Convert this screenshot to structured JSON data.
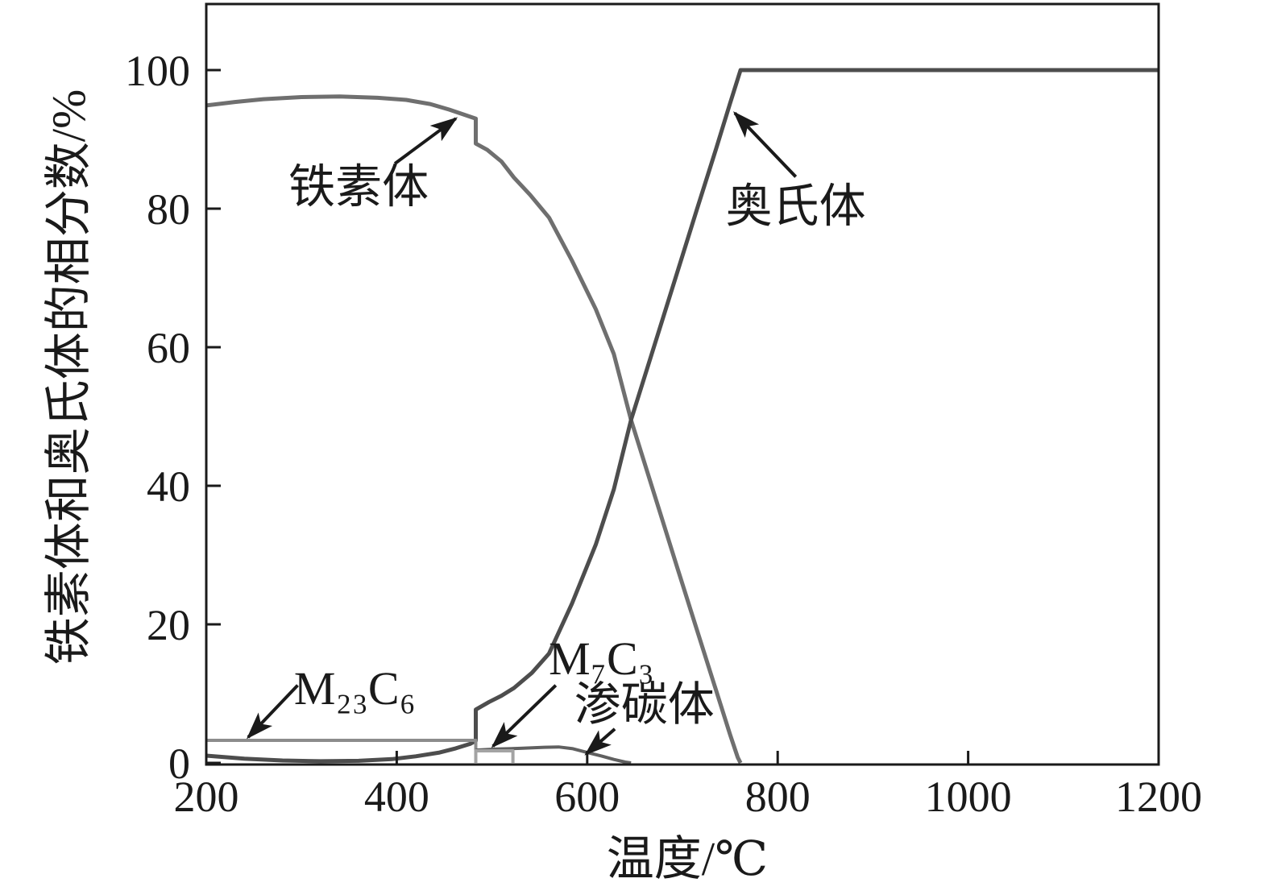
{
  "chart_data": {
    "type": "line",
    "title": "",
    "xlabel": "温度/℃",
    "ylabel": "铁素体和奥氏体的相分数/%",
    "xlim": [
      200,
      1200
    ],
    "ylim": [
      0,
      110
    ],
    "x_ticks": [
      200,
      400,
      600,
      800,
      1000,
      1200
    ],
    "y_ticks": [
      0,
      20,
      40,
      60,
      80,
      100
    ],
    "grid": false,
    "legend_position": "none (curves identified by arrow annotations)",
    "axis_color": "#1a1a1a",
    "series": [
      {
        "id": "ferrite",
        "name": "铁素体",
        "color": "#6f6f6f",
        "width": 5,
        "points": [
          [
            200,
            94.9
          ],
          [
            230,
            95.4
          ],
          [
            260,
            95.8
          ],
          [
            300,
            96.1
          ],
          [
            340,
            96.2
          ],
          [
            380,
            96.0
          ],
          [
            410,
            95.7
          ],
          [
            435,
            95.1
          ],
          [
            455,
            94.3
          ],
          [
            470,
            93.6
          ],
          [
            483,
            93.0
          ],
          [
            483,
            89.4
          ],
          [
            495,
            88.5
          ],
          [
            510,
            86.8
          ],
          [
            523,
            84.5
          ],
          [
            540,
            82.0
          ],
          [
            560,
            78.7
          ],
          [
            584,
            72.5
          ],
          [
            609,
            65.5
          ],
          [
            628,
            59.0
          ],
          [
            646,
            49.5
          ],
          [
            670,
            39.0
          ],
          [
            695,
            28.0
          ],
          [
            715,
            19.3
          ],
          [
            735,
            10.6
          ],
          [
            750,
            4.1
          ],
          [
            758,
            0.8
          ],
          [
            761,
            0
          ]
        ]
      },
      {
        "id": "austenite",
        "name": "奥氏体",
        "color": "#4d4d4d",
        "width": 5,
        "points": [
          [
            200,
            1.05
          ],
          [
            240,
            0.6
          ],
          [
            280,
            0.35
          ],
          [
            320,
            0.25
          ],
          [
            360,
            0.3
          ],
          [
            395,
            0.55
          ],
          [
            420,
            0.95
          ],
          [
            445,
            1.5
          ],
          [
            462,
            2.1
          ],
          [
            477,
            2.75
          ],
          [
            483,
            3.2
          ],
          [
            483,
            7.7
          ],
          [
            497,
            8.8
          ],
          [
            510,
            9.7
          ],
          [
            523,
            10.8
          ],
          [
            542,
            13.0
          ],
          [
            560,
            15.8
          ],
          [
            584,
            23.0
          ],
          [
            609,
            31.5
          ],
          [
            628,
            39.5
          ],
          [
            646,
            49.5
          ],
          [
            670,
            60.0
          ],
          [
            695,
            71.0
          ],
          [
            715,
            79.8
          ],
          [
            735,
            88.5
          ],
          [
            750,
            95.2
          ],
          [
            761,
            100
          ],
          [
            1200,
            100
          ]
        ]
      },
      {
        "id": "m23c6",
        "name": "M₂₃C₆",
        "color": "#8c8c8c",
        "width": 4,
        "points": [
          [
            200,
            3.25
          ],
          [
            350,
            3.25
          ],
          [
            483,
            3.25
          ],
          [
            483,
            0
          ]
        ]
      },
      {
        "id": "cementite",
        "name": "渗碳体",
        "color": "#606060",
        "width": 4,
        "points": [
          [
            483,
            1.85
          ],
          [
            505,
            2.0
          ],
          [
            530,
            2.1
          ],
          [
            555,
            2.25
          ],
          [
            570,
            2.3
          ],
          [
            585,
            2.05
          ],
          [
            600,
            1.5
          ],
          [
            615,
            1.0
          ],
          [
            628,
            0.5
          ],
          [
            640,
            0.12
          ],
          [
            646,
            0
          ]
        ]
      },
      {
        "id": "m7c3",
        "name": "M₇C₃",
        "color": "#a3a3a3",
        "width": 4,
        "points": [
          [
            483,
            0
          ],
          [
            483,
            1.75
          ],
          [
            522,
            1.75
          ],
          [
            522,
            0
          ]
        ]
      }
    ],
    "annotations": [
      {
        "id": "ferrite-label",
        "text": "铁素体",
        "t": 360,
        "f": 83.2,
        "arrow_from": [
          398,
          86.5
        ],
        "arrow_to": [
          462,
          93.0
        ]
      },
      {
        "id": "austenite-label",
        "text": "奥氏体",
        "t": 819,
        "f": 80.4,
        "arrow_from": [
          819,
          84.6
        ],
        "arrow_to": [
          755,
          93.8
        ]
      },
      {
        "id": "m23c6-label",
        "text": "M₂₃C₆",
        "t": 356,
        "f": 10.8,
        "arrow_from": [
          296,
          11.2
        ],
        "arrow_to": [
          244,
          3.7
        ]
      },
      {
        "id": "m7c3-label",
        "text": "M₇C₃",
        "t": 615,
        "f": 15.1,
        "arrow_from": [
          567,
          11.2
        ],
        "arrow_to": [
          501,
          2.4
        ]
      },
      {
        "id": "cementite-label",
        "text": "渗碳体",
        "t": 660,
        "f": 8.5,
        "arrow_from": [
          629,
          4.9
        ],
        "arrow_to": [
          599,
          1.3
        ]
      }
    ],
    "annotation_arrow_color": "#1a1a1a"
  }
}
